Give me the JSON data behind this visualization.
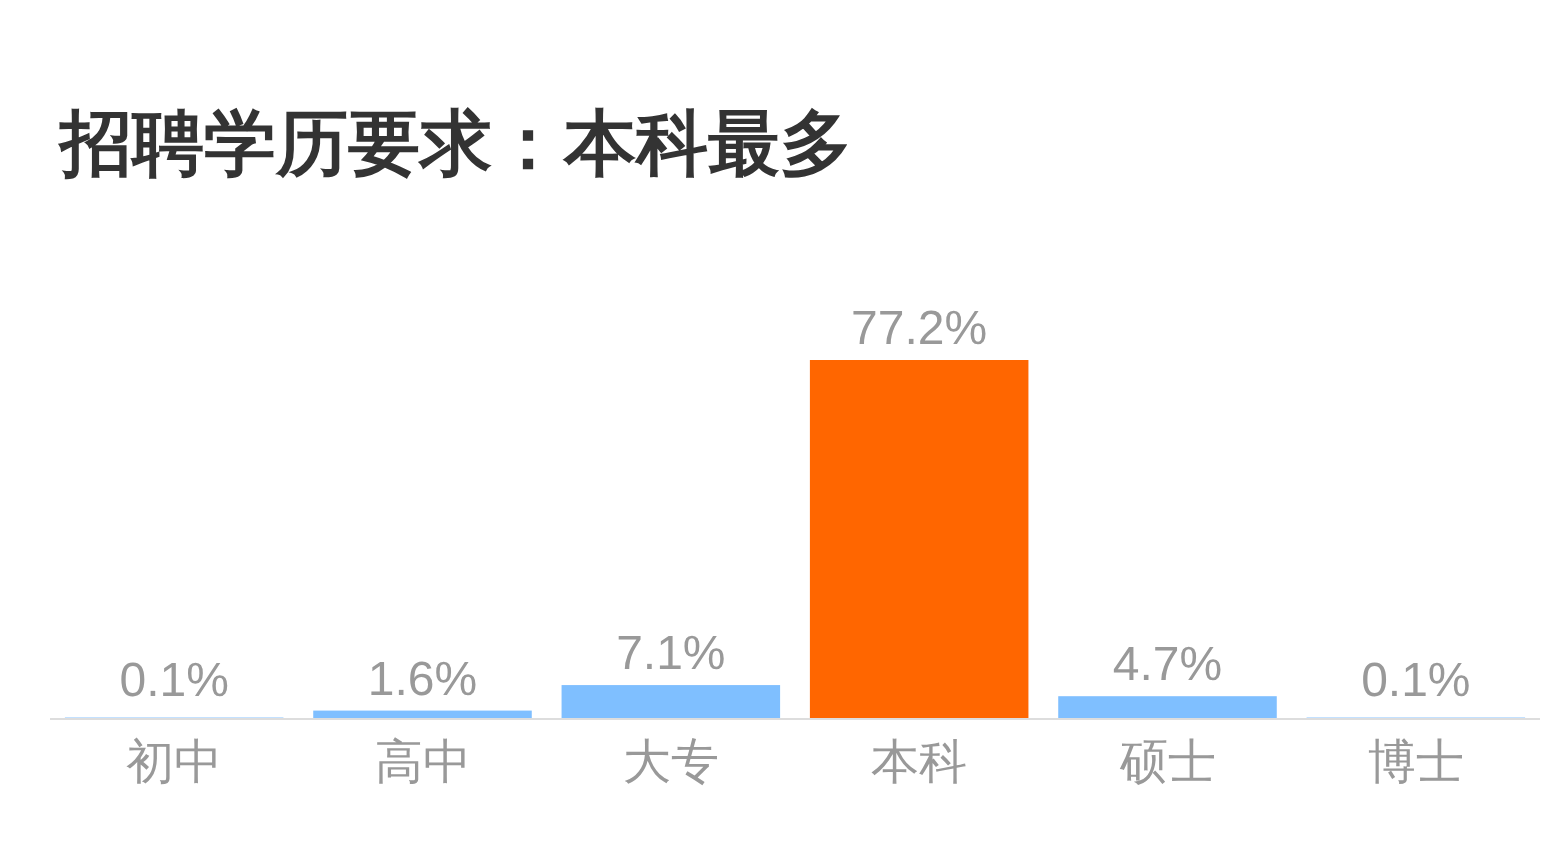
{
  "chart_data": {
    "type": "bar",
    "title": "招聘学历要求：本科最多",
    "categories": [
      "初中",
      "高中",
      "大专",
      "本科",
      "硕士",
      "博士"
    ],
    "values": [
      0.1,
      1.6,
      7.1,
      77.2,
      4.7,
      0.1
    ],
    "colors": [
      "#7fbfff",
      "#7fbfff",
      "#7fbfff",
      "#ff6600",
      "#7fbfff",
      "#7fbfff"
    ],
    "value_labels": [
      "0.1%",
      "1.6%",
      "7.1%",
      "77.2%",
      "4.7%",
      "0.1%"
    ]
  }
}
